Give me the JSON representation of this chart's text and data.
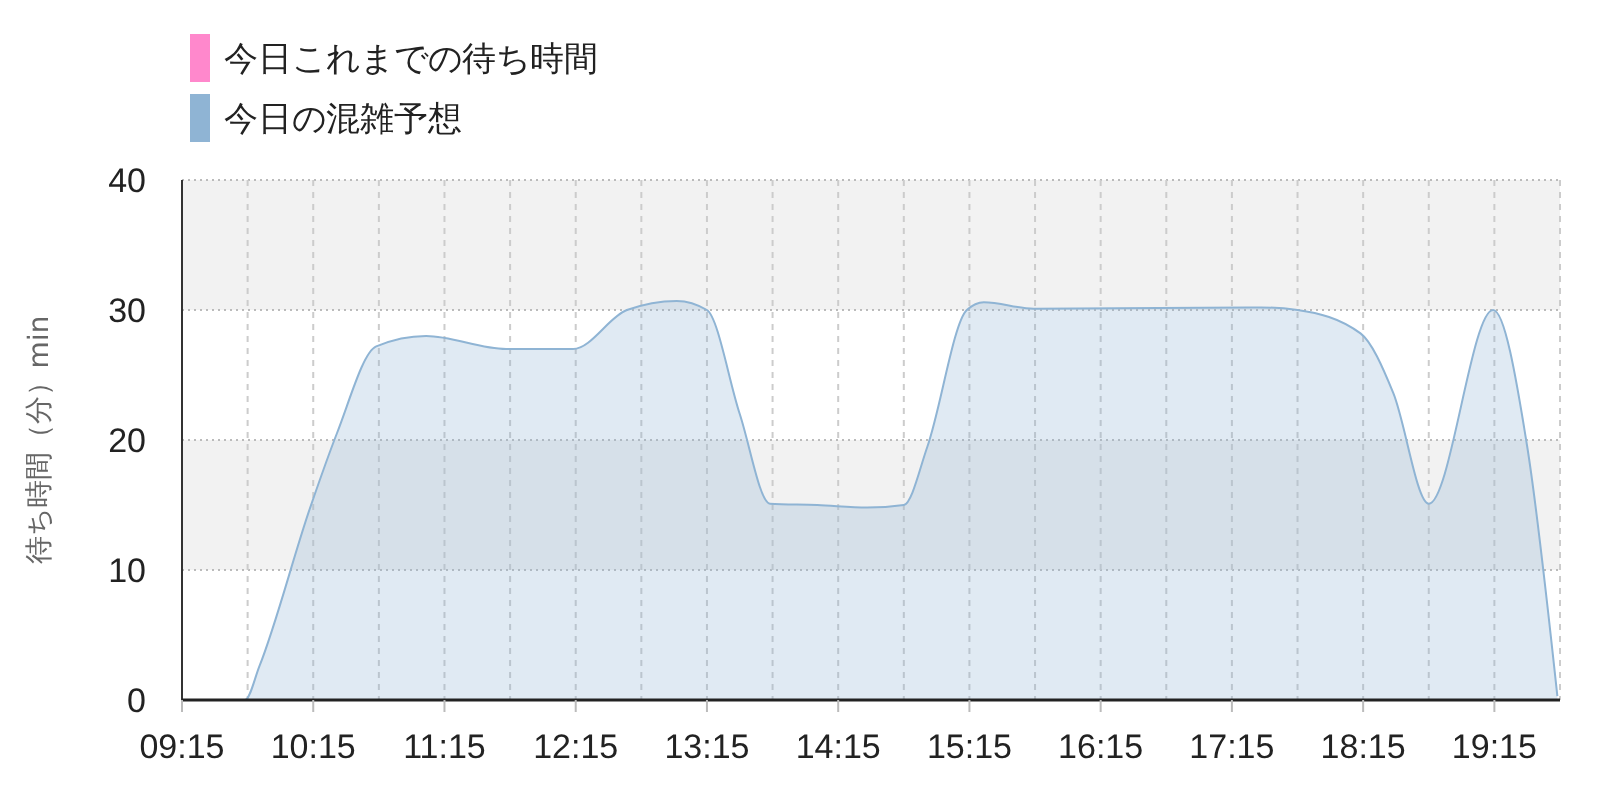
{
  "chart_data": {
    "type": "area",
    "ylabel": "待ち時間（分）min",
    "x": [
      9.25,
      9.54,
      9.73,
      9.84,
      10.23,
      10.43,
      10.73,
      11.11,
      11.72,
      12.23,
      12.64,
      13.02,
      13.25,
      13.5,
      13.73,
      14.09,
      14.47,
      14.75,
      14.93,
      15.23,
      15.36,
      15.74,
      17.47,
      17.75,
      18.23,
      18.48,
      18.75,
      19.24,
      19.5,
      19.73
    ],
    "series": [
      {
        "name": "今日これまでの待ち時間",
        "color": "#ff88cc",
        "values": [
          null,
          null,
          null,
          null,
          null,
          null,
          null,
          null,
          null,
          null,
          null,
          null,
          null,
          null,
          null,
          null,
          null,
          null,
          null,
          null,
          null,
          null,
          null,
          null,
          null,
          null,
          null,
          null,
          null,
          null
        ]
      },
      {
        "name": "今日の混雑予想",
        "color": "#8fb4d4",
        "values": [
          0,
          0,
          0,
          2.6,
          14.9,
          20.5,
          27.2,
          28,
          27,
          27,
          30,
          30.7,
          30,
          22,
          15.1,
          15,
          14.8,
          15,
          19.5,
          30,
          30.6,
          30.1,
          30.2,
          30,
          28.2,
          23.6,
          15.1,
          30,
          19.5,
          0.3
        ]
      }
    ],
    "xlim": [
      9.25,
      19.75
    ],
    "xticks": [
      {
        "value": 9.25,
        "label": "09:15"
      },
      {
        "value": 9.75,
        "label": null
      },
      {
        "value": 10.25,
        "label": "10:15"
      },
      {
        "value": 10.75,
        "label": null
      },
      {
        "value": 11.25,
        "label": "11:15"
      },
      {
        "value": 11.75,
        "label": null
      },
      {
        "value": 12.25,
        "label": "12:15"
      },
      {
        "value": 12.75,
        "label": null
      },
      {
        "value": 13.25,
        "label": "13:15"
      },
      {
        "value": 13.75,
        "label": null
      },
      {
        "value": 14.25,
        "label": "14:15"
      },
      {
        "value": 14.75,
        "label": null
      },
      {
        "value": 15.25,
        "label": "15:15"
      },
      {
        "value": 15.75,
        "label": null
      },
      {
        "value": 16.25,
        "label": "16:15"
      },
      {
        "value": 16.75,
        "label": null
      },
      {
        "value": 17.25,
        "label": "17:15"
      },
      {
        "value": 17.75,
        "label": null
      },
      {
        "value": 18.25,
        "label": "18:15"
      },
      {
        "value": 18.75,
        "label": null
      },
      {
        "value": 19.25,
        "label": "19:15"
      },
      {
        "value": 19.75,
        "label": null
      }
    ],
    "ylim": [
      0,
      40
    ],
    "yticks": [
      0,
      10,
      20,
      30,
      40
    ],
    "grid": true,
    "legend": "top left"
  }
}
